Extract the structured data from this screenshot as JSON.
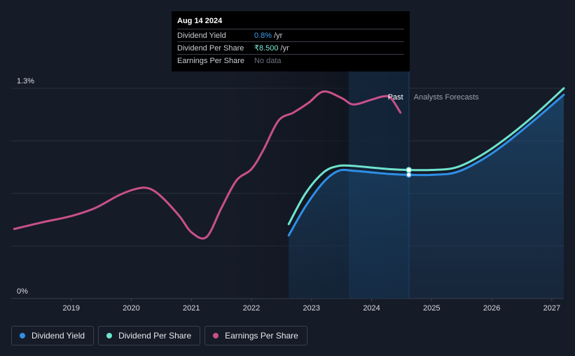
{
  "tooltip": {
    "date": "Aug 14 2024",
    "rows": [
      {
        "label": "Dividend Yield",
        "value": "0.8%",
        "unit": "/yr"
      },
      {
        "label": "Dividend Per Share",
        "value": "₹8.500",
        "unit": "/yr"
      },
      {
        "label": "Earnings Per Share",
        "value": "No data",
        "unit": ""
      }
    ]
  },
  "legend": [
    {
      "label": "Dividend Yield",
      "color": "#2f8fe6"
    },
    {
      "label": "Dividend Per Share",
      "color": "#6fe3cf"
    },
    {
      "label": "Earnings Per Share",
      "color": "#c8508a"
    }
  ],
  "chart_data": {
    "type": "line",
    "y_tick_labels": [
      "1.3%",
      "0%"
    ],
    "ylim": [
      0,
      1.3
    ],
    "xlim": [
      2018.0,
      2027.2
    ],
    "x_tick_labels": [
      "2019",
      "2020",
      "2021",
      "2022",
      "2023",
      "2024",
      "2025",
      "2026",
      "2027"
    ],
    "x_ticks": [
      2019,
      2020,
      2021,
      2022,
      2023,
      2024,
      2025,
      2026,
      2027
    ],
    "divider_x": 2024.62,
    "forecast_start_shade": 2023.62,
    "past_label": "Past",
    "forecast_label": "Analysts Forecasts",
    "highlight_x": 2024.62,
    "series": [
      {
        "name": "Earnings Per Share",
        "color": "#c8508a",
        "x": [
          2018.05,
          2018.5,
          2019.0,
          2019.4,
          2019.8,
          2020.1,
          2020.3,
          2020.5,
          2020.8,
          2021.0,
          2021.25,
          2021.5,
          2021.75,
          2022.0,
          2022.2,
          2022.45,
          2022.7,
          2022.95,
          2023.2,
          2023.5,
          2023.7,
          2024.0,
          2024.2,
          2024.32,
          2024.48
        ],
        "y": [
          0.43,
          0.47,
          0.51,
          0.56,
          0.64,
          0.68,
          0.68,
          0.63,
          0.51,
          0.41,
          0.38,
          0.56,
          0.73,
          0.8,
          0.92,
          1.1,
          1.15,
          1.21,
          1.28,
          1.24,
          1.2,
          1.23,
          1.25,
          1.24,
          1.15
        ]
      },
      {
        "name": "Dividend Yield",
        "color": "#2f8fe6",
        "x": [
          2022.62,
          2022.9,
          2023.2,
          2023.45,
          2023.7,
          2024.0,
          2024.3,
          2024.62,
          2025.0,
          2025.4,
          2025.8,
          2026.2,
          2026.7,
          2027.2
        ],
        "y": [
          0.39,
          0.57,
          0.72,
          0.79,
          0.79,
          0.78,
          0.77,
          0.765,
          0.765,
          0.78,
          0.85,
          0.95,
          1.1,
          1.26
        ]
      },
      {
        "name": "Dividend Per Share",
        "color": "#6fe3cf",
        "x": [
          2022.62,
          2022.9,
          2023.2,
          2023.45,
          2023.7,
          2024.0,
          2024.3,
          2024.62,
          2025.0,
          2025.4,
          2025.8,
          2026.2,
          2026.7,
          2027.2
        ],
        "y": [
          0.46,
          0.65,
          0.78,
          0.82,
          0.82,
          0.81,
          0.8,
          0.795,
          0.795,
          0.81,
          0.88,
          0.98,
          1.13,
          1.3
        ]
      }
    ]
  }
}
